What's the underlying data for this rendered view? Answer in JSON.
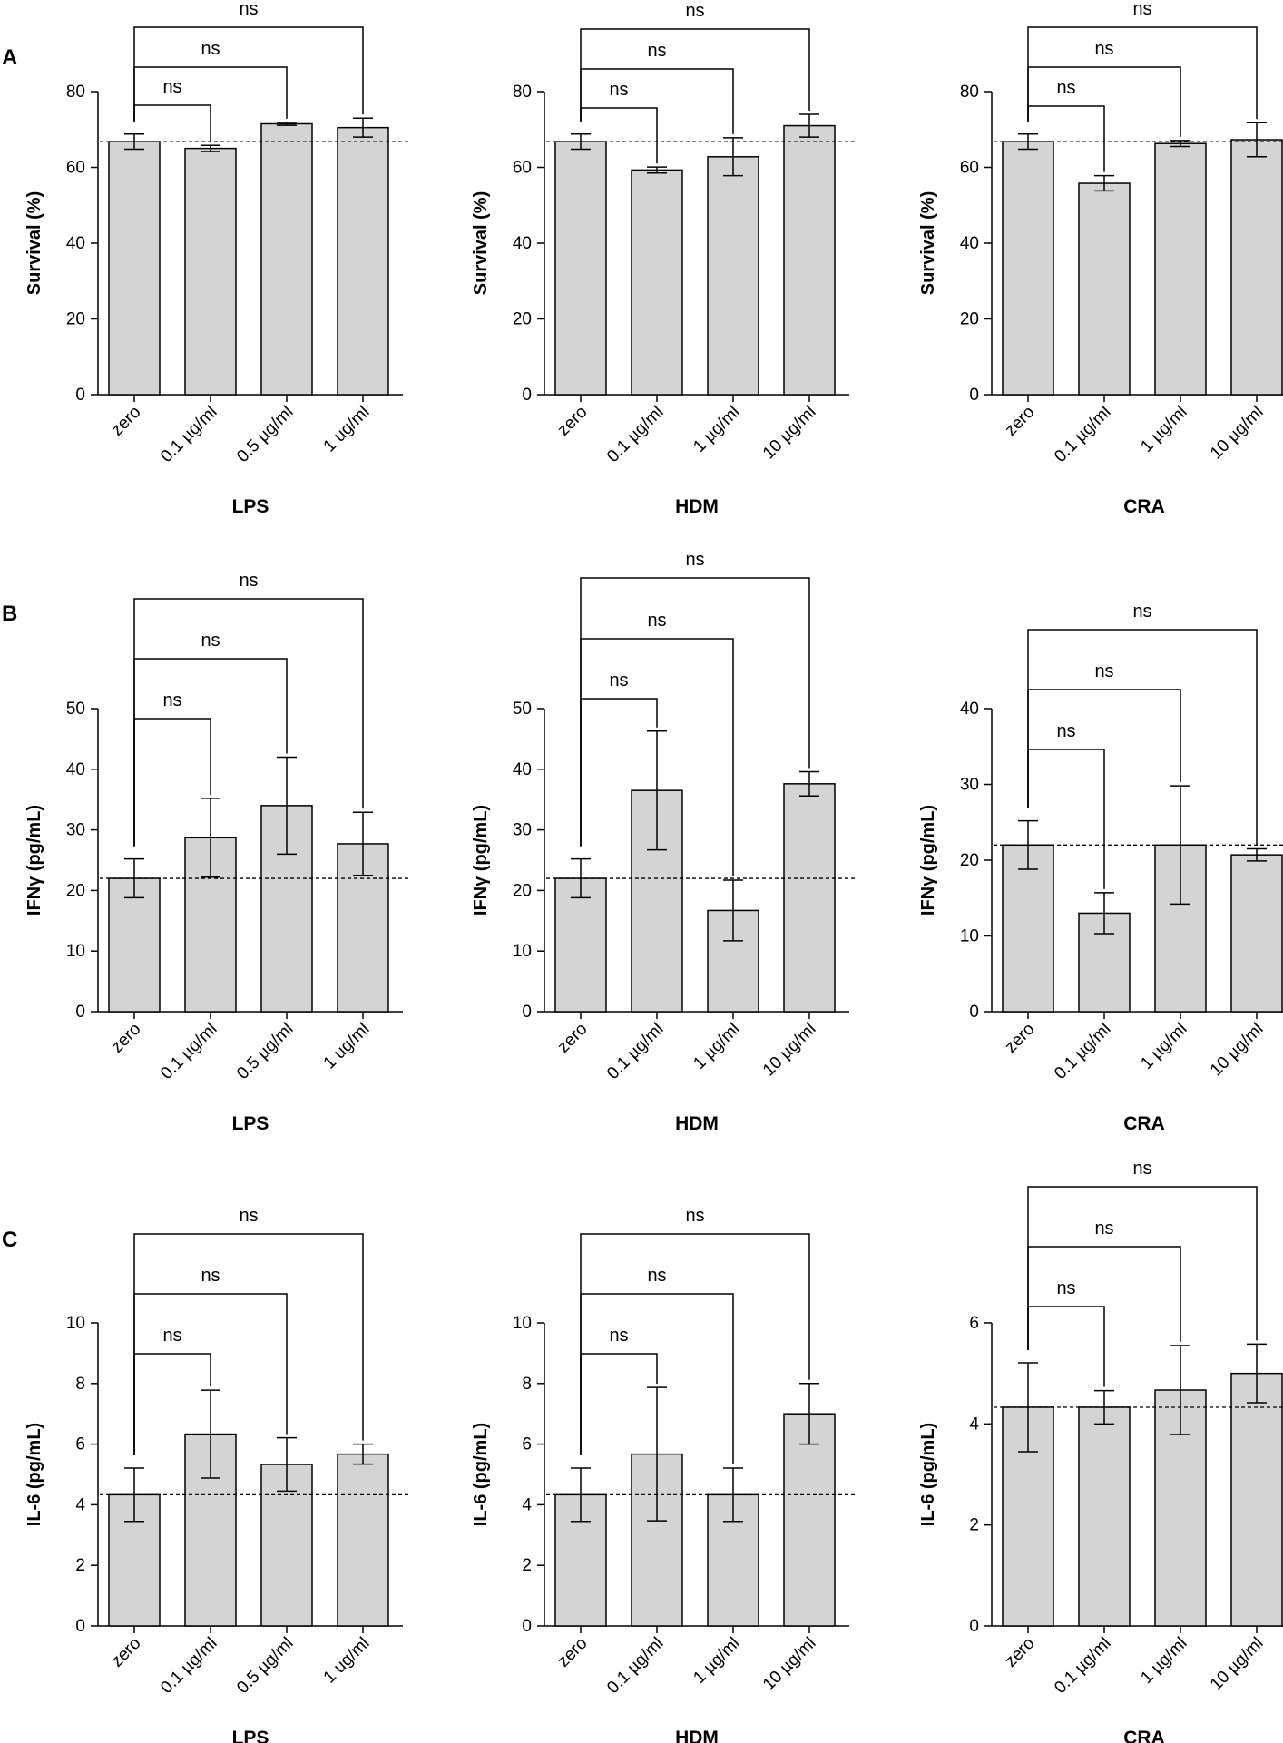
{
  "figure": {
    "panel_letters": [
      "A",
      "B",
      "C"
    ]
  },
  "colors": {
    "bar_fill": "#d4d4d4",
    "stroke": "#000000"
  },
  "chart_data": [
    {
      "id": "A-LPS",
      "type": "bar",
      "row": 0,
      "col": 0,
      "ylabel": "Survival (%)",
      "xlabel": "LPS",
      "categories": [
        "zero",
        "0.1 µg/ml",
        "0.5 µg/ml",
        "1 ug/ml"
      ],
      "values": [
        66.8,
        65.0,
        71.5,
        70.5
      ],
      "errors": [
        2.0,
        0.8,
        0.4,
        2.5
      ],
      "ylim": [
        0,
        80
      ],
      "yticks": [
        0,
        20,
        40,
        60,
        80
      ],
      "reference_line": 66.8,
      "comparisons": [
        {
          "to": 1,
          "label": "ns"
        },
        {
          "to": 2,
          "label": "ns"
        },
        {
          "to": 3,
          "label": "ns"
        }
      ]
    },
    {
      "id": "A-HDM",
      "type": "bar",
      "row": 0,
      "col": 1,
      "ylabel": "Survival (%)",
      "xlabel": "HDM",
      "categories": [
        "zero",
        "0.1 µg/ml",
        "1 µg/ml",
        "10 µg/ml"
      ],
      "values": [
        66.8,
        59.3,
        62.8,
        71.0
      ],
      "errors": [
        2.0,
        0.8,
        5.0,
        3.0
      ],
      "ylim": [
        0,
        80
      ],
      "yticks": [
        0,
        20,
        40,
        60,
        80
      ],
      "reference_line": 66.8,
      "comparisons": [
        {
          "to": 1,
          "label": "ns"
        },
        {
          "to": 2,
          "label": "ns"
        },
        {
          "to": 3,
          "label": "ns"
        }
      ]
    },
    {
      "id": "A-CRA",
      "type": "bar",
      "row": 0,
      "col": 2,
      "ylabel": "Survival (%)",
      "xlabel": "CRA",
      "categories": [
        "zero",
        "0.1 µg/ml",
        "1 µg/ml",
        "10 µg/ml"
      ],
      "values": [
        66.8,
        55.8,
        66.3,
        67.3
      ],
      "errors": [
        2.0,
        2.0,
        0.8,
        4.5
      ],
      "ylim": [
        0,
        80
      ],
      "yticks": [
        0,
        20,
        40,
        60,
        80
      ],
      "reference_line": 66.8,
      "comparisons": [
        {
          "to": 1,
          "label": "ns"
        },
        {
          "to": 2,
          "label": "ns"
        },
        {
          "to": 3,
          "label": "ns"
        }
      ]
    },
    {
      "id": "B-LPS",
      "type": "bar",
      "row": 1,
      "col": 0,
      "ylabel": "IFNγ (pg/mL)",
      "xlabel": "LPS",
      "categories": [
        "zero",
        "0.1 µg/ml",
        "0.5 µg/ml",
        "1 ug/ml"
      ],
      "values": [
        22.0,
        28.7,
        34.0,
        27.7
      ],
      "errors": [
        3.2,
        6.5,
        8.0,
        5.2
      ],
      "ylim": [
        0,
        50
      ],
      "yticks": [
        0,
        10,
        20,
        30,
        40,
        50
      ],
      "reference_line": 22.0,
      "comparisons": [
        {
          "to": 1,
          "label": "ns"
        },
        {
          "to": 2,
          "label": "ns"
        },
        {
          "to": 3,
          "label": "ns"
        }
      ]
    },
    {
      "id": "B-HDM",
      "type": "bar",
      "row": 1,
      "col": 1,
      "ylabel": "IFNγ (pg/mL)",
      "xlabel": "HDM",
      "categories": [
        "zero",
        "0.1 µg/ml",
        "1 µg/ml",
        "10 µg/ml"
      ],
      "values": [
        22.0,
        36.5,
        16.7,
        37.6
      ],
      "errors": [
        3.2,
        9.8,
        5.0,
        2.0
      ],
      "ylim": [
        0,
        50
      ],
      "yticks": [
        0,
        10,
        20,
        30,
        40,
        50
      ],
      "reference_line": 22.0,
      "comparisons": [
        {
          "to": 1,
          "label": "ns"
        },
        {
          "to": 2,
          "label": "ns"
        },
        {
          "to": 3,
          "label": "ns"
        }
      ]
    },
    {
      "id": "B-CRA",
      "type": "bar",
      "row": 1,
      "col": 2,
      "ylabel": "IFNγ (pg/mL)",
      "xlabel": "CRA",
      "categories": [
        "zero",
        "0.1 µg/ml",
        "1 µg/ml",
        "10 µg/ml"
      ],
      "values": [
        22.0,
        13.0,
        22.0,
        20.7
      ],
      "errors": [
        3.2,
        2.7,
        7.8,
        0.8
      ],
      "ylim": [
        0,
        40
      ],
      "yticks": [
        0,
        10,
        20,
        30,
        40
      ],
      "reference_line": 22.0,
      "comparisons": [
        {
          "to": 1,
          "label": "ns"
        },
        {
          "to": 2,
          "label": "ns"
        },
        {
          "to": 3,
          "label": "ns"
        }
      ]
    },
    {
      "id": "C-LPS",
      "type": "bar",
      "row": 2,
      "col": 0,
      "ylabel": "IL-6 (pg/mL)",
      "xlabel": "LPS",
      "categories": [
        "zero",
        "0.1 µg/ml",
        "0.5 µg/ml",
        "1 ug/ml"
      ],
      "values": [
        4.33,
        6.33,
        5.33,
        5.67
      ],
      "errors": [
        0.88,
        1.45,
        0.88,
        0.33
      ],
      "ylim": [
        0,
        10
      ],
      "yticks": [
        0,
        2,
        4,
        6,
        8,
        10
      ],
      "reference_line": 4.33,
      "comparisons": [
        {
          "to": 1,
          "label": "ns"
        },
        {
          "to": 2,
          "label": "ns"
        },
        {
          "to": 3,
          "label": "ns"
        }
      ]
    },
    {
      "id": "C-HDM",
      "type": "bar",
      "row": 2,
      "col": 1,
      "ylabel": "IL-6 (pg/mL)",
      "xlabel": "HDM",
      "categories": [
        "zero",
        "0.1 µg/ml",
        "1 µg/ml",
        "10 µg/ml"
      ],
      "values": [
        4.33,
        5.67,
        4.33,
        7.0
      ],
      "errors": [
        0.88,
        2.2,
        0.88,
        1.0
      ],
      "ylim": [
        0,
        10
      ],
      "yticks": [
        0,
        2,
        4,
        6,
        8,
        10
      ],
      "reference_line": 4.33,
      "comparisons": [
        {
          "to": 1,
          "label": "ns"
        },
        {
          "to": 2,
          "label": "ns"
        },
        {
          "to": 3,
          "label": "ns"
        }
      ]
    },
    {
      "id": "C-CRA",
      "type": "bar",
      "row": 2,
      "col": 2,
      "ylabel": "IL-6 (pg/mL)",
      "xlabel": "CRA",
      "categories": [
        "zero",
        "0.1 µg/ml",
        "1 µg/ml",
        "10 µg/ml"
      ],
      "values": [
        4.33,
        4.33,
        4.67,
        5.0
      ],
      "errors": [
        0.88,
        0.33,
        0.88,
        0.58
      ],
      "ylim": [
        0,
        6
      ],
      "yticks": [
        0,
        2,
        4,
        6
      ],
      "reference_line": 4.33,
      "comparisons": [
        {
          "to": 1,
          "label": "ns"
        },
        {
          "to": 2,
          "label": "ns"
        },
        {
          "to": 3,
          "label": "ns"
        }
      ]
    }
  ]
}
